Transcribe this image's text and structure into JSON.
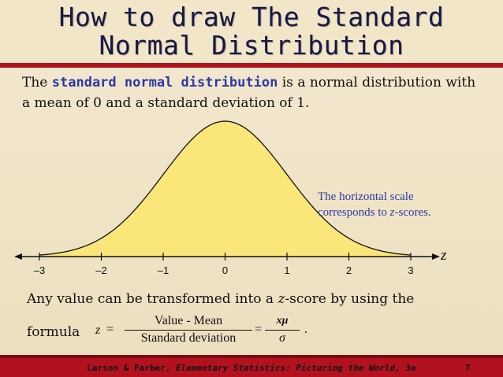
{
  "title": {
    "line1": "How to draw The Standard",
    "line2": "Normal Distribution"
  },
  "intro": {
    "prefix": "The ",
    "term": "standard normal distribution",
    "suffix": " is a normal distribution with a mean of 0 and a standard deviation of 1."
  },
  "caption": {
    "line1": "The horizontal scale",
    "line2_prefix": "corresponds to ",
    "line2_em": "z",
    "line2_suffix": "-scores."
  },
  "axis": {
    "label": "z",
    "ticks": [
      "–3",
      "–2",
      "–1",
      "0",
      "1",
      "2",
      "3"
    ]
  },
  "chart_data": {
    "type": "area",
    "x_ticks": [
      -3,
      -2,
      -1,
      0,
      1,
      2,
      3
    ],
    "xlim": [
      -3,
      3
    ],
    "curve": "standard normal density, mean 0, standard deviation 1",
    "fill_color": "#fbe67a",
    "xlabel": "z"
  },
  "paragraph": {
    "prefix": "Any value can be transformed into a ",
    "em": "z",
    "suffix": "-score by using the"
  },
  "formula": {
    "word": "formula",
    "z": "z",
    "eq": "=",
    "num1": "Value - Mean",
    "den1": "Standard deviation",
    "num2": "x",
    "num2_mu": "μ",
    "den2": "σ",
    "period": "."
  },
  "footer": {
    "authors": "Larson & Farber, ",
    "book": "Elementary Statistics: Picturing the World,",
    "edition": " 3e",
    "page": "7"
  },
  "colors": {
    "accent_red": "#b2121e",
    "title_navy": "#17184a",
    "term_blue": "#2d3aa6"
  }
}
